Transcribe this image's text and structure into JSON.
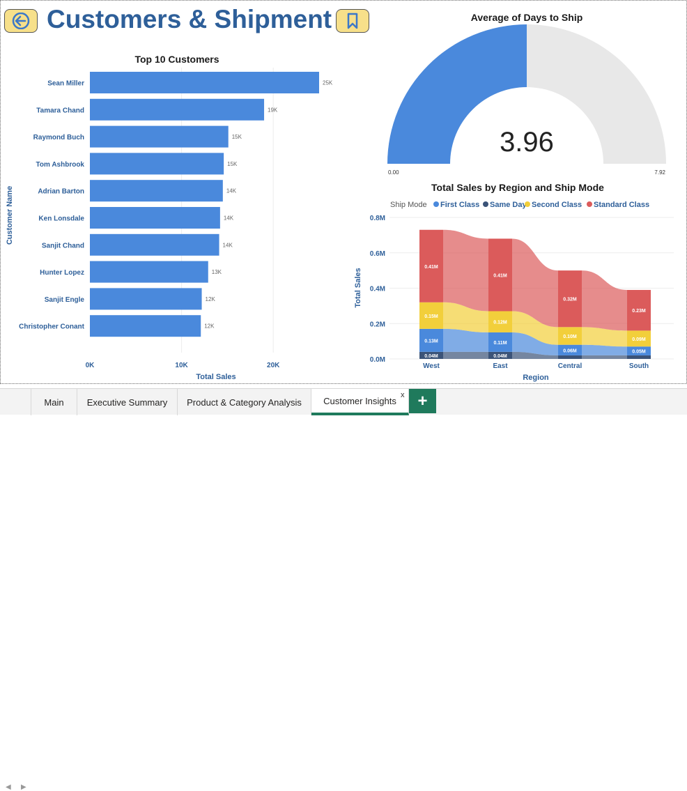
{
  "header": {
    "title": "Customers & Shipment",
    "back_icon": "arrow-left-icon",
    "bookmark_icon": "bookmark-icon",
    "button_color": "#f7e08a",
    "title_color": "#2e5f99"
  },
  "top_customers": {
    "title": "Top 10 Customers",
    "xlabel": "Total Sales",
    "ylabel": "Customer Name",
    "bar_color": "#4a89dc",
    "x_ticks": [
      "0K",
      "10K",
      "20K"
    ],
    "labels": [
      "25K",
      "19K",
      "15K",
      "15K",
      "14K",
      "14K",
      "14K",
      "13K",
      "12K",
      "12K"
    ]
  },
  "gauge": {
    "title": "Average of Days to Ship",
    "value_label": "3.96",
    "min_label": "0.00",
    "max_label": "7.92"
  },
  "region_chart": {
    "title": "Total Sales by Region and Ship Mode",
    "legend_title": "Ship Mode",
    "xlabel": "Region",
    "ylabel": "Total Sales",
    "y_ticks": [
      "0.0M",
      "0.2M",
      "0.4M",
      "0.6M",
      "0.8M"
    ],
    "segment_labels": {
      "West": [
        "0.04M",
        "0.13M",
        "0.15M",
        "0.41M"
      ],
      "East": [
        "0.04M",
        "0.11M",
        "0.12M",
        "0.41M"
      ],
      "Central": [
        "",
        "0.06M",
        "0.10M",
        "0.32M"
      ],
      "South": [
        "",
        "0.05M",
        "0.09M",
        "0.23M"
      ]
    }
  },
  "tabs": {
    "main": "Main",
    "executive": "Executive Summary",
    "product": "Product & Category Analysis",
    "customer": "Customer Insights",
    "close": "x",
    "add": "+"
  },
  "chart_data": [
    {
      "type": "bar",
      "orientation": "horizontal",
      "title": "Top 10 Customers",
      "xlabel": "Total Sales",
      "ylabel": "Customer Name",
      "categories": [
        "Sean Miller",
        "Tamara Chand",
        "Raymond Buch",
        "Tom Ashbrook",
        "Adrian Barton",
        "Ken Lonsdale",
        "Sanjit Chand",
        "Hunter Lopez",
        "Sanjit Engle",
        "Christopher Conant"
      ],
      "values": [
        25000,
        19000,
        15100,
        14600,
        14500,
        14200,
        14100,
        12900,
        12200,
        12100
      ],
      "xlim": [
        0,
        25000
      ],
      "grid": true
    },
    {
      "type": "gauge",
      "title": "Average of Days to Ship",
      "value": 3.96,
      "min": 0,
      "max": 7.92,
      "colors": {
        "fill": "#4a89dc",
        "track": "#e8e8e8"
      }
    },
    {
      "type": "bar",
      "stacked": true,
      "title": "Total Sales by Region and Ship Mode",
      "xlabel": "Region",
      "ylabel": "Total Sales",
      "categories": [
        "West",
        "East",
        "Central",
        "South"
      ],
      "ylim": [
        0,
        0.8
      ],
      "legend_position": "top",
      "series": [
        {
          "name": "Same Day",
          "values": [
            0.04,
            0.04,
            0.02,
            0.02
          ],
          "color": "#3b5378"
        },
        {
          "name": "First Class",
          "values": [
            0.13,
            0.11,
            0.06,
            0.05
          ],
          "color": "#4a89dc"
        },
        {
          "name": "Second Class",
          "values": [
            0.15,
            0.12,
            0.1,
            0.09
          ],
          "color": "#f2cf3b"
        },
        {
          "name": "Standard Class",
          "values": [
            0.41,
            0.41,
            0.32,
            0.23
          ],
          "color": "#db5b5b"
        }
      ]
    }
  ]
}
